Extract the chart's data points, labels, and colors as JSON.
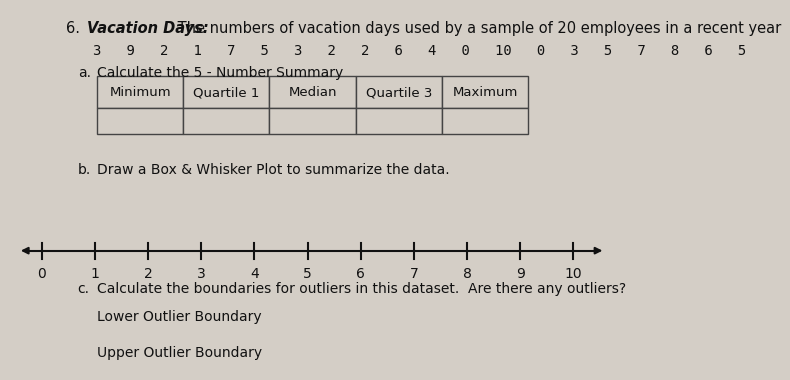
{
  "title_number": "6.",
  "title_bold": "Vacation Days:",
  "title_rest": " The numbers of vacation days used by a sample of 20 employees in a recent year",
  "data_row": "3   9   2   1   7   5   3   2   2   6   4   0   10   0   3   5   7   8   6   5",
  "part_a_label": "a.",
  "part_a_text": "Calculate the 5 - Number Summary",
  "table_headers": [
    "Minimum",
    "Quartile 1",
    "Median",
    "Quartile 3",
    "Maximum"
  ],
  "part_b_label": "b.",
  "part_b_text": "Draw a Box & Whisker Plot to summarize the data.",
  "number_line_ticks": [
    0,
    1,
    2,
    3,
    4,
    5,
    6,
    7,
    8,
    9,
    10
  ],
  "part_c_label": "c.",
  "part_c_text": "Calculate the boundaries for outliers in this dataset.  Are there any outliers?",
  "lower_outlier_label": "Lower Outlier Boundary",
  "upper_outlier_label": "Upper Outlier Boundary",
  "bg_color": "#d4cec6",
  "text_color": "#111111",
  "font_size_title": 10.5,
  "font_size_body": 10,
  "font_size_table": 9.5,
  "font_size_data": 10,
  "font_size_nl": 10
}
